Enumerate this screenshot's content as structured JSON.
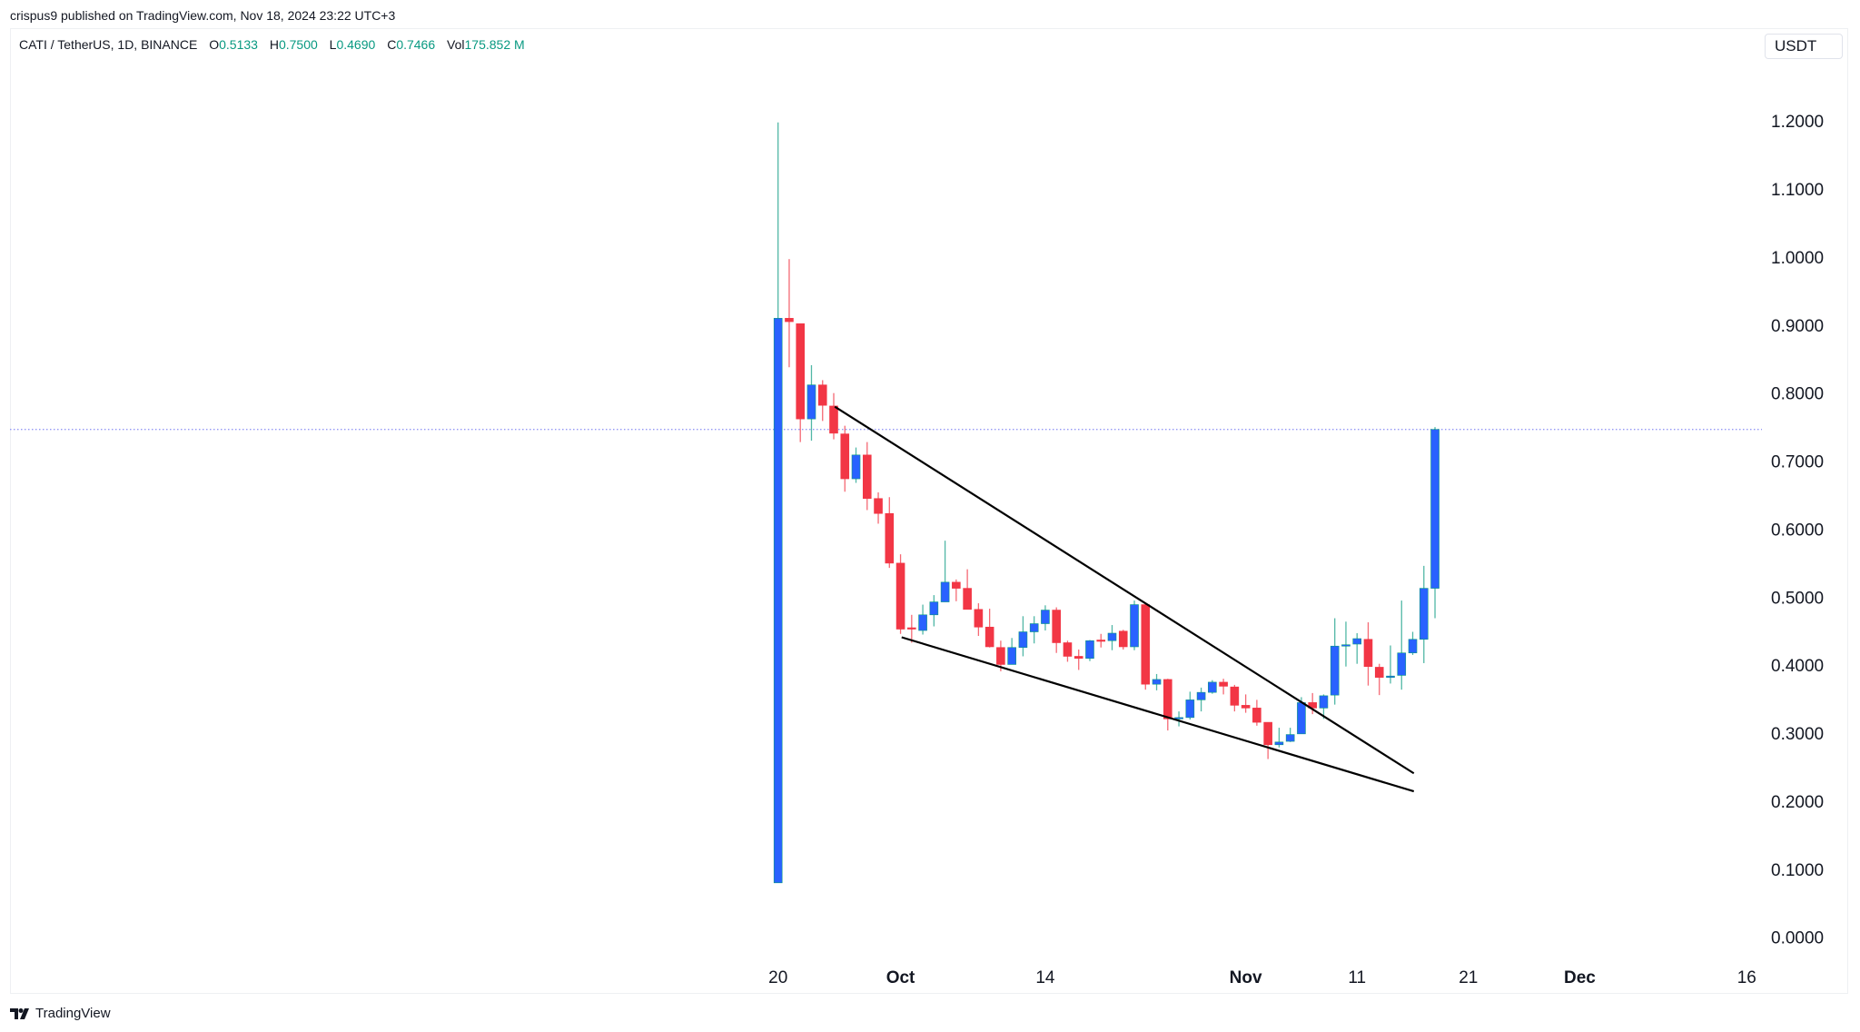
{
  "published": "crispus9 published on TradingView.com, Nov 18, 2024 23:22 UTC+3",
  "legend": {
    "symbol": "CATI / TetherUS, 1D, BINANCE",
    "o_label": "O",
    "o": "0.5133",
    "h_label": "H",
    "h": "0.7500",
    "l_label": "L",
    "l": "0.4690",
    "c_label": "C",
    "c": "0.7466",
    "vol_label": "Vol",
    "vol": "175.852 M"
  },
  "currency_button": "USDT",
  "footer": {
    "brand": "TradingView",
    "logo_text": "17"
  },
  "colors": {
    "up": "#2962ff",
    "up_wick": "#089981",
    "down": "#f23645",
    "last_price_line": "#9598f5",
    "trendline": "#000000"
  },
  "chart_data": {
    "type": "candlestick",
    "title": "CATI / TetherUS, 1D, BINANCE",
    "start_date": "2024-09-20",
    "ylim": [
      0,
      1.2
    ],
    "y_ticks": [
      "0.0000",
      "0.1000",
      "0.2000",
      "0.3000",
      "0.4000",
      "0.5000",
      "0.6000",
      "0.7000",
      "0.8000",
      "0.9000",
      "1.0000",
      "1.1000",
      "1.2000"
    ],
    "x_ticks": [
      {
        "label": "20",
        "day": 0,
        "month": false
      },
      {
        "label": "Oct",
        "day": 11,
        "month": true
      },
      {
        "label": "14",
        "day": 24,
        "month": false
      },
      {
        "label": "Nov",
        "day": 42,
        "month": true
      },
      {
        "label": "11",
        "day": 52,
        "month": false
      },
      {
        "label": "21",
        "day": 62,
        "month": false
      },
      {
        "label": "Dec",
        "day": 72,
        "month": true
      },
      {
        "label": "16",
        "day": 87,
        "month": false
      }
    ],
    "x_range_days": [
      -69,
      88
    ],
    "last_price": 0.7466,
    "ohlc": [
      [
        0.08,
        1.198,
        0.08,
        0.91
      ],
      [
        0.91,
        0.997,
        0.838,
        0.905
      ],
      [
        0.902,
        0.902,
        0.728,
        0.762
      ],
      [
        0.762,
        0.841,
        0.73,
        0.812
      ],
      [
        0.812,
        0.819,
        0.759,
        0.782
      ],
      [
        0.781,
        0.8,
        0.732,
        0.741
      ],
      [
        0.74,
        0.752,
        0.655,
        0.674
      ],
      [
        0.674,
        0.72,
        0.668,
        0.709
      ],
      [
        0.709,
        0.728,
        0.628,
        0.645
      ],
      [
        0.645,
        0.654,
        0.608,
        0.623
      ],
      [
        0.623,
        0.647,
        0.543,
        0.55
      ],
      [
        0.55,
        0.563,
        0.446,
        0.453
      ],
      [
        0.455,
        0.474,
        0.433,
        0.453
      ],
      [
        0.451,
        0.489,
        0.445,
        0.474
      ],
      [
        0.474,
        0.503,
        0.457,
        0.493
      ],
      [
        0.493,
        0.583,
        0.493,
        0.522
      ],
      [
        0.522,
        0.526,
        0.494,
        0.513
      ],
      [
        0.513,
        0.541,
        0.482,
        0.482
      ],
      [
        0.482,
        0.491,
        0.443,
        0.456
      ],
      [
        0.456,
        0.483,
        0.426,
        0.427
      ],
      [
        0.426,
        0.436,
        0.391,
        0.401
      ],
      [
        0.401,
        0.44,
        0.401,
        0.426
      ],
      [
        0.426,
        0.472,
        0.413,
        0.449
      ],
      [
        0.449,
        0.472,
        0.432,
        0.461
      ],
      [
        0.461,
        0.488,
        0.451,
        0.481
      ],
      [
        0.481,
        0.485,
        0.418,
        0.433
      ],
      [
        0.433,
        0.436,
        0.405,
        0.413
      ],
      [
        0.413,
        0.423,
        0.393,
        0.41
      ],
      [
        0.41,
        0.437,
        0.406,
        0.436
      ],
      [
        0.437,
        0.446,
        0.426,
        0.435
      ],
      [
        0.436,
        0.459,
        0.422,
        0.447
      ],
      [
        0.45,
        0.452,
        0.423,
        0.427
      ],
      [
        0.427,
        0.495,
        0.422,
        0.489
      ],
      [
        0.489,
        0.491,
        0.364,
        0.372
      ],
      [
        0.372,
        0.387,
        0.363,
        0.379
      ],
      [
        0.379,
        0.38,
        0.304,
        0.321
      ],
      [
        0.321,
        0.332,
        0.31,
        0.323
      ],
      [
        0.323,
        0.361,
        0.32,
        0.349
      ],
      [
        0.349,
        0.367,
        0.332,
        0.36
      ],
      [
        0.36,
        0.378,
        0.358,
        0.375
      ],
      [
        0.375,
        0.38,
        0.357,
        0.369
      ],
      [
        0.368,
        0.371,
        0.332,
        0.341
      ],
      [
        0.341,
        0.357,
        0.33,
        0.337
      ],
      [
        0.337,
        0.349,
        0.311,
        0.316
      ],
      [
        0.316,
        0.316,
        0.262,
        0.283
      ],
      [
        0.283,
        0.308,
        0.279,
        0.287
      ],
      [
        0.288,
        0.308,
        0.287,
        0.298
      ],
      [
        0.299,
        0.353,
        0.299,
        0.345
      ],
      [
        0.345,
        0.359,
        0.328,
        0.337
      ],
      [
        0.337,
        0.357,
        0.321,
        0.355
      ],
      [
        0.356,
        0.469,
        0.342,
        0.428
      ],
      [
        0.429,
        0.464,
        0.398,
        0.43
      ],
      [
        0.431,
        0.447,
        0.402,
        0.439
      ],
      [
        0.438,
        0.463,
        0.37,
        0.398
      ],
      [
        0.397,
        0.402,
        0.356,
        0.382
      ],
      [
        0.383,
        0.429,
        0.373,
        0.384
      ],
      [
        0.385,
        0.495,
        0.364,
        0.418
      ],
      [
        0.418,
        0.449,
        0.415,
        0.438
      ],
      [
        0.438,
        0.546,
        0.403,
        0.513
      ],
      [
        0.513,
        0.75,
        0.469,
        0.7466
      ]
    ],
    "drawings": [
      {
        "name": "falling-wedge-upper-trendline",
        "from": {
          "day": 5.1,
          "price": 0.78
        },
        "to": {
          "day": 57.1,
          "price": 0.241
        }
      },
      {
        "name": "falling-wedge-lower-trendline",
        "from": {
          "day": 11.1,
          "price": 0.441
        },
        "to": {
          "day": 57.1,
          "price": 0.2145
        }
      }
    ]
  }
}
